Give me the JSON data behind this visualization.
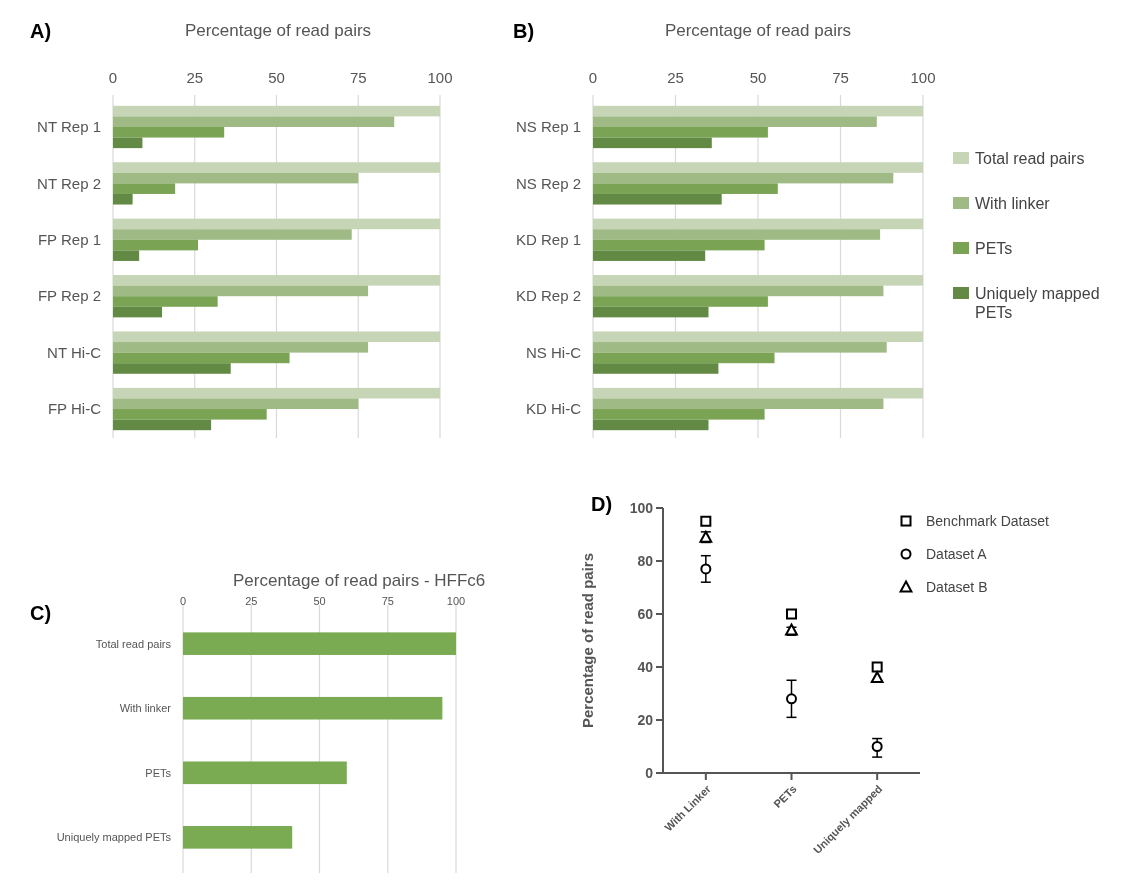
{
  "chart_data": [
    {
      "type": "bar",
      "orientation": "horizontal",
      "title": "Percentage of read pairs",
      "annotations": [
        "A)"
      ],
      "categories": [
        "NT Rep 1",
        "NT Rep 2",
        "FP Rep 1",
        "FP Rep 2",
        "NT Hi-C",
        "FP Hi-C"
      ],
      "series": [
        {
          "color": "#c5d5b5",
          "values": [
            100,
            100,
            100,
            100,
            100,
            100
          ]
        },
        {
          "color": "#9fba85",
          "values": [
            86,
            75,
            73,
            78,
            78,
            75
          ]
        },
        {
          "color": "#7aa453",
          "values": [
            34,
            19,
            26,
            32,
            54,
            47
          ]
        },
        {
          "color": "#628a45",
          "values": [
            9,
            6,
            8,
            15,
            36,
            30
          ]
        }
      ],
      "xlim": [
        0,
        100
      ],
      "xticks": [
        0,
        25,
        50,
        75,
        100
      ],
      "grid": "x",
      "legend": false
    },
    {
      "type": "bar",
      "orientation": "horizontal",
      "title": "Percentage of read pairs",
      "annotations": [
        "B)"
      ],
      "categories": [
        "NS Rep 1",
        "NS Rep 2",
        "KD Rep 1",
        "KD Rep 2",
        "NS Hi-C",
        "KD Hi-C"
      ],
      "series": [
        {
          "name": "Total read pairs",
          "color": "#c5d5b5",
          "values": [
            100,
            100,
            100,
            100,
            100,
            100
          ]
        },
        {
          "name": "With linker",
          "color": "#9fba85",
          "values": [
            86,
            91,
            87,
            88,
            89,
            88
          ]
        },
        {
          "name": "PETs",
          "color": "#7aa453",
          "values": [
            53,
            56,
            52,
            53,
            55,
            52
          ]
        },
        {
          "name": "Uniquely mapped PETs",
          "color": "#628a45",
          "values": [
            36,
            39,
            34,
            35,
            38,
            35
          ]
        }
      ],
      "xlim": [
        0,
        100
      ],
      "xticks": [
        0,
        25,
        50,
        75,
        100
      ],
      "grid": "x",
      "legend": "right"
    },
    {
      "type": "bar",
      "orientation": "horizontal",
      "title": "Percentage of read pairs - HFFc6",
      "annotations": [
        "C)"
      ],
      "categories": [
        "Total read pairs",
        "With linker",
        "PETs",
        "Uniquely mapped PETs"
      ],
      "series": [
        {
          "color": "#7aab52",
          "values": [
            100,
            95,
            60,
            40
          ]
        }
      ],
      "xlim": [
        0,
        100
      ],
      "xticks": [
        0,
        25,
        50,
        75,
        100
      ],
      "grid": "x",
      "legend": false
    },
    {
      "type": "scatter",
      "annotations": [
        "D)"
      ],
      "ylabel": "Percentage of read pairs",
      "categories": [
        "With Linker",
        "PETs",
        "Uniquely mapped"
      ],
      "series": [
        {
          "name": "Benchmark Dataset",
          "color": "#000000",
          "marker": "square",
          "values": [
            95,
            60,
            40
          ]
        },
        {
          "name": "Dataset A",
          "color": "#000000",
          "marker": "circle",
          "values": [
            77,
            28,
            10
          ],
          "errors": [
            [
              72,
              82
            ],
            [
              21,
              35
            ],
            [
              6,
              13
            ]
          ]
        },
        {
          "name": "Dataset B",
          "color": "#000000",
          "marker": "triangle",
          "values": [
            89,
            54,
            36
          ],
          "errors": [
            [
              87,
              91
            ],
            [
              52,
              55
            ],
            null
          ]
        }
      ],
      "ylim": [
        0,
        100
      ],
      "yticks": [
        0,
        20,
        40,
        60,
        80,
        100
      ],
      "grid": false,
      "legend": "top right"
    }
  ]
}
